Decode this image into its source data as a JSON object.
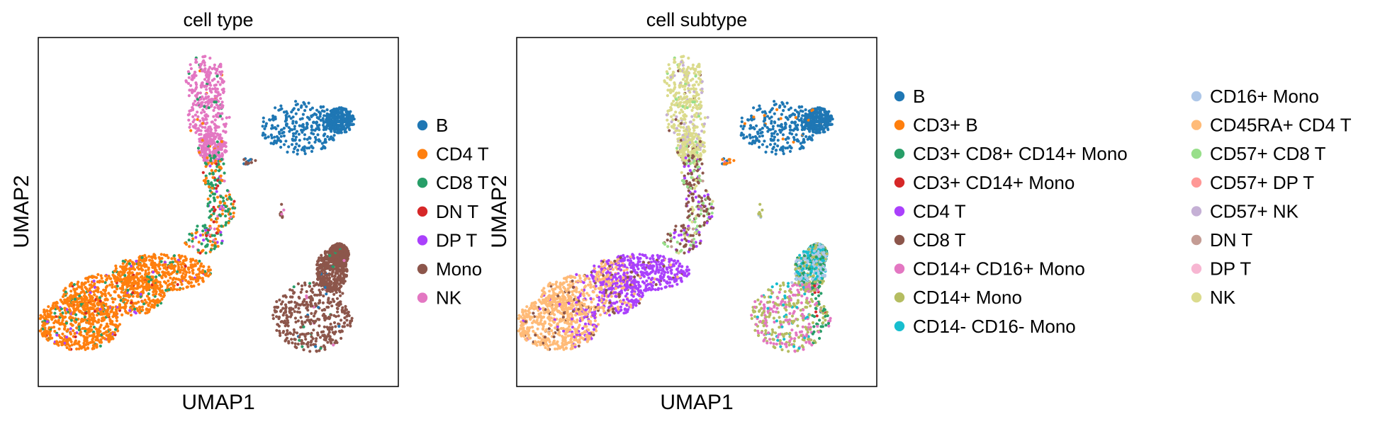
{
  "chart_data": [
    {
      "type": "scatter",
      "title": "cell type",
      "xlabel": "UMAP1",
      "ylabel": "UMAP2",
      "xticks": [],
      "yticks": [],
      "grid": false,
      "legend_position": "right",
      "series": [
        {
          "name": "B",
          "color": "#1f77b4"
        },
        {
          "name": "CD4 T",
          "color": "#ff7f0e"
        },
        {
          "name": "CD8 T",
          "color": "#279e68"
        },
        {
          "name": "DN T",
          "color": "#d62728"
        },
        {
          "name": "DP T",
          "color": "#aa40fc"
        },
        {
          "name": "Mono",
          "color": "#8c564b"
        },
        {
          "name": "NK",
          "color": "#e377c2"
        }
      ]
    },
    {
      "type": "scatter",
      "title": "cell subtype",
      "xlabel": "UMAP1",
      "ylabel": "UMAP2",
      "xticks": [],
      "yticks": [],
      "grid": false,
      "legend_position": "right",
      "series": [
        {
          "name": "B",
          "color": "#1f77b4"
        },
        {
          "name": "CD3+ B",
          "color": "#ff7f0e"
        },
        {
          "name": "CD3+ CD8+ CD14+ Mono",
          "color": "#279e68"
        },
        {
          "name": "CD3+ CD14+ Mono",
          "color": "#d62728"
        },
        {
          "name": "CD4 T",
          "color": "#aa40fc"
        },
        {
          "name": "CD8 T",
          "color": "#8c564b"
        },
        {
          "name": "CD14+ CD16+ Mono",
          "color": "#e377c2"
        },
        {
          "name": "CD14+ Mono",
          "color": "#b5bd61"
        },
        {
          "name": "CD14- CD16- Mono",
          "color": "#17becf"
        },
        {
          "name": "CD16+ Mono",
          "color": "#aec7e8"
        },
        {
          "name": "CD45RA+ CD4 T",
          "color": "#ffbb78"
        },
        {
          "name": "CD57+ CD8 T",
          "color": "#98df8a"
        },
        {
          "name": "CD57+ DP T",
          "color": "#ff9896"
        },
        {
          "name": "CD57+ NK",
          "color": "#c5b0d5"
        },
        {
          "name": "DN T",
          "color": "#c49c94"
        },
        {
          "name": "DP T",
          "color": "#f7b6d2"
        },
        {
          "name": "NK",
          "color": "#dbdb8d"
        }
      ]
    }
  ]
}
